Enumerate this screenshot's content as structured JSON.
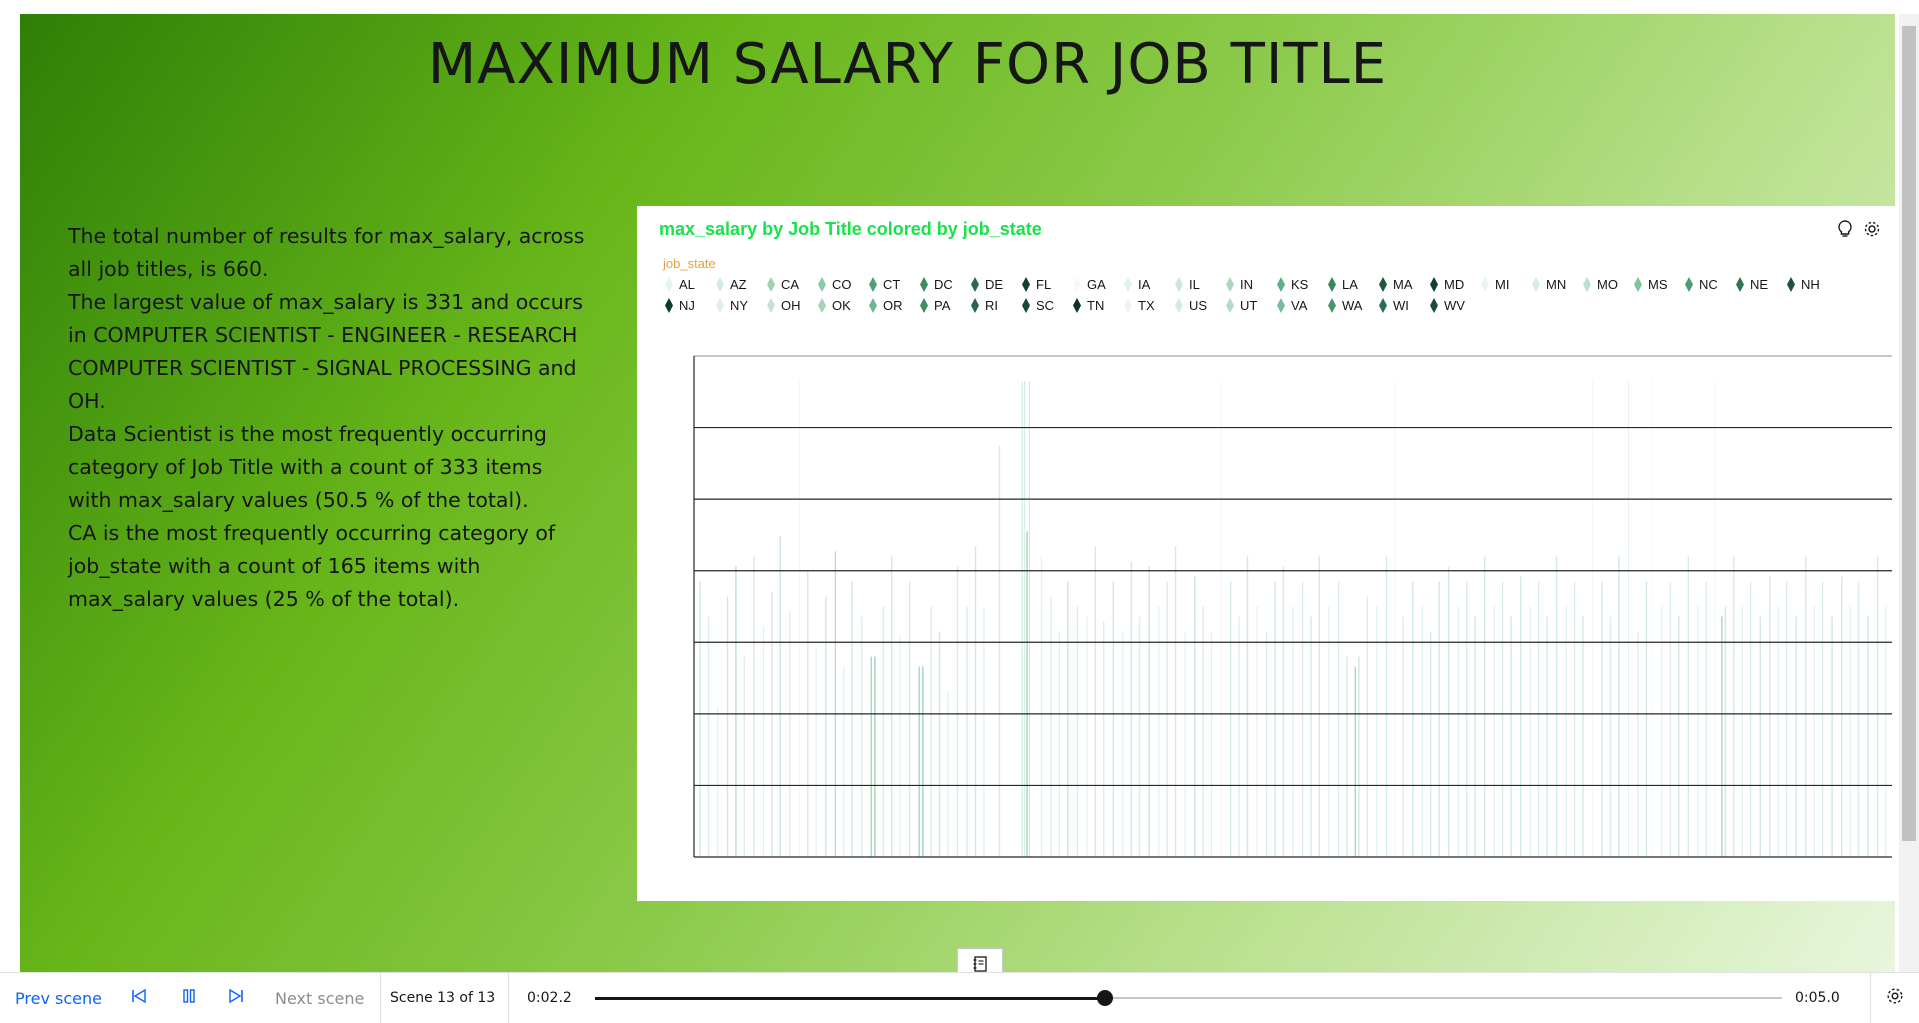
{
  "scene": {
    "title": "MAXIMUM SALARY FOR JOB TITLE",
    "narrative": [
      "The total number of results for max_salary, across all job titles, is 660.",
      "The largest value of max_salary is 331 and occurs in COMPUTER SCIENTIST - ENGINEER - RESEARCH COMPUTER SCIENTIST - SIGNAL PROCESSING and OH.",
      "Data Scientist is the most frequently occurring category of Job Title with a count of 333 items with max_salary values (50.5 % of the total).",
      "CA is the most frequently occurring category of job_state with a count of 165 items with max_salary values (25 % of the total)."
    ]
  },
  "chart_card": {
    "icons": [
      "lightbulb-icon",
      "settings-gear-icon"
    ]
  },
  "chart_data": {
    "type": "bar",
    "title": "max_salary by Job Title colored by job_state",
    "legend_title": "job_state",
    "legend_placement": "top",
    "grid": true,
    "legend": [
      {
        "label": "AL",
        "color": "#e6f4ed"
      },
      {
        "label": "AZ",
        "color": "#d4ecdf"
      },
      {
        "label": "CA",
        "color": "#9fd3b5"
      },
      {
        "label": "CO",
        "color": "#8ccaa7"
      },
      {
        "label": "CT",
        "color": "#4f9e77"
      },
      {
        "label": "DC",
        "color": "#3e8a64"
      },
      {
        "label": "DE",
        "color": "#2c6a4b"
      },
      {
        "label": "FL",
        "color": "#11402b"
      },
      {
        "label": "GA",
        "color": "#f3faf6"
      },
      {
        "label": "IA",
        "color": "#e2f2e9"
      },
      {
        "label": "IL",
        "color": "#cce8d8"
      },
      {
        "label": "IN",
        "color": "#a9d8bd"
      },
      {
        "label": "KS",
        "color": "#5fae86"
      },
      {
        "label": "LA",
        "color": "#3a8860"
      },
      {
        "label": "MA",
        "color": "#1f573b"
      },
      {
        "label": "MD",
        "color": "#123f2a"
      },
      {
        "label": "MI",
        "color": "#e9f5ee"
      },
      {
        "label": "MN",
        "color": "#d7eee1"
      },
      {
        "label": "MO",
        "color": "#b9e0ca"
      },
      {
        "label": "MS",
        "color": "#7cc49c"
      },
      {
        "label": "NC",
        "color": "#4c9c73"
      },
      {
        "label": "NE",
        "color": "#2f7553"
      },
      {
        "label": "NH",
        "color": "#1e5239"
      },
      {
        "label": "NJ",
        "color": "#0f3a26"
      },
      {
        "label": "NY",
        "color": "#dcefe4"
      },
      {
        "label": "OH",
        "color": "#c2e4d1"
      },
      {
        "label": "OK",
        "color": "#a2d4b8"
      },
      {
        "label": "OR",
        "color": "#6cb891"
      },
      {
        "label": "PA",
        "color": "#3f8e66"
      },
      {
        "label": "RI",
        "color": "#28654a"
      },
      {
        "label": "SC",
        "color": "#154a31"
      },
      {
        "label": "TN",
        "color": "#0d3322"
      },
      {
        "label": "TX",
        "color": "#eaf6ef"
      },
      {
        "label": "US",
        "color": "#d1ebdc"
      },
      {
        "label": "UT",
        "color": "#b1dbc3"
      },
      {
        "label": "VA",
        "color": "#73be96"
      },
      {
        "label": "WA",
        "color": "#47966e"
      },
      {
        "label": "WI",
        "color": "#2b6e4e"
      },
      {
        "label": "WV",
        "color": "#1b4d35"
      }
    ],
    "gridlines": 7,
    "spikes": [
      {
        "x": 0.005,
        "h": 0.55,
        "c": "#cfe9dc"
      },
      {
        "x": 0.012,
        "h": 0.48,
        "c": "#dcefe4"
      },
      {
        "x": 0.02,
        "h": 0.3,
        "c": "#e4f3ea"
      },
      {
        "x": 0.028,
        "h": 0.52,
        "c": "#cfe9dc"
      },
      {
        "x": 0.035,
        "h": 0.58,
        "c": "#b9e0ca"
      },
      {
        "x": 0.042,
        "h": 0.4,
        "c": "#dcefe4"
      },
      {
        "x": 0.05,
        "h": 0.6,
        "c": "#d4ecdf"
      },
      {
        "x": 0.058,
        "h": 0.46,
        "c": "#e4f3ea"
      },
      {
        "x": 0.065,
        "h": 0.53,
        "c": "#cfe9dc"
      },
      {
        "x": 0.072,
        "h": 0.64,
        "c": "#cce8d8"
      },
      {
        "x": 0.08,
        "h": 0.49,
        "c": "#dcefe4"
      },
      {
        "x": 0.088,
        "h": 0.95,
        "c": "#f0f8f3"
      },
      {
        "x": 0.095,
        "h": 0.57,
        "c": "#d4ecdf"
      },
      {
        "x": 0.102,
        "h": 0.42,
        "c": "#e4f3ea"
      },
      {
        "x": 0.11,
        "h": 0.52,
        "c": "#cfe9dc"
      },
      {
        "x": 0.118,
        "h": 0.61,
        "c": "#b9e0ca"
      },
      {
        "x": 0.125,
        "h": 0.38,
        "c": "#e4f3ea"
      },
      {
        "x": 0.132,
        "h": 0.55,
        "c": "#cfe9dc"
      },
      {
        "x": 0.14,
        "h": 0.48,
        "c": "#dcefe4"
      },
      {
        "x": 0.148,
        "h": 0.4,
        "c": "#a9d8bd"
      },
      {
        "x": 0.151,
        "h": 0.4,
        "c": "#9fd3b5"
      },
      {
        "x": 0.158,
        "h": 0.5,
        "c": "#dcefe4"
      },
      {
        "x": 0.165,
        "h": 0.6,
        "c": "#cfe9dc"
      },
      {
        "x": 0.172,
        "h": 0.44,
        "c": "#e4f3ea"
      },
      {
        "x": 0.18,
        "h": 0.55,
        "c": "#d4ecdf"
      },
      {
        "x": 0.188,
        "h": 0.38,
        "c": "#a9d8bd"
      },
      {
        "x": 0.191,
        "h": 0.38,
        "c": "#9fd3b5"
      },
      {
        "x": 0.198,
        "h": 0.5,
        "c": "#dcefe4"
      },
      {
        "x": 0.205,
        "h": 0.45,
        "c": "#cfe9dc"
      },
      {
        "x": 0.212,
        "h": 0.33,
        "c": "#e4f3ea"
      },
      {
        "x": 0.22,
        "h": 0.58,
        "c": "#d4ecdf"
      },
      {
        "x": 0.228,
        "h": 0.5,
        "c": "#dcefe4"
      },
      {
        "x": 0.235,
        "h": 0.62,
        "c": "#cfe9dc"
      },
      {
        "x": 0.242,
        "h": 0.5,
        "c": "#e4f3ea"
      },
      {
        "x": 0.255,
        "h": 0.82,
        "c": "#d4ecdf"
      },
      {
        "x": 0.274,
        "h": 0.95,
        "c": "#cfe9dc"
      },
      {
        "x": 0.276,
        "h": 0.95,
        "c": "#d4ecdf"
      },
      {
        "x": 0.278,
        "h": 0.65,
        "c": "#a2d4b8"
      },
      {
        "x": 0.28,
        "h": 0.95,
        "c": "#cfe9dc"
      },
      {
        "x": 0.29,
        "h": 0.6,
        "c": "#e4f3ea"
      },
      {
        "x": 0.298,
        "h": 0.52,
        "c": "#dcefe4"
      },
      {
        "x": 0.305,
        "h": 0.45,
        "c": "#e4f3ea"
      },
      {
        "x": 0.312,
        "h": 0.55,
        "c": "#cfe9dc"
      },
      {
        "x": 0.32,
        "h": 0.5,
        "c": "#dcefe4"
      },
      {
        "x": 0.328,
        "h": 0.48,
        "c": "#e4f3ea"
      },
      {
        "x": 0.335,
        "h": 0.62,
        "c": "#d4ecdf"
      },
      {
        "x": 0.342,
        "h": 0.47,
        "c": "#dcefe4"
      },
      {
        "x": 0.35,
        "h": 0.55,
        "c": "#cfe9dc"
      },
      {
        "x": 0.358,
        "h": 0.45,
        "c": "#e4f3ea"
      },
      {
        "x": 0.365,
        "h": 0.59,
        "c": "#d4ecdf"
      },
      {
        "x": 0.372,
        "h": 0.48,
        "c": "#dcefe4"
      },
      {
        "x": 0.38,
        "h": 0.58,
        "c": "#cfe9dc"
      },
      {
        "x": 0.388,
        "h": 0.5,
        "c": "#e4f3ea"
      },
      {
        "x": 0.395,
        "h": 0.55,
        "c": "#dcefe4"
      },
      {
        "x": 0.402,
        "h": 0.62,
        "c": "#d4ecdf"
      },
      {
        "x": 0.41,
        "h": 0.45,
        "c": "#e4f3ea"
      },
      {
        "x": 0.418,
        "h": 0.56,
        "c": "#cfe9dc"
      },
      {
        "x": 0.425,
        "h": 0.5,
        "c": "#dcefe4"
      },
      {
        "x": 0.432,
        "h": 0.45,
        "c": "#e4f3ea"
      },
      {
        "x": 0.44,
        "h": 0.95,
        "c": "#f0f8f3"
      },
      {
        "x": 0.448,
        "h": 0.55,
        "c": "#d4ecdf"
      },
      {
        "x": 0.455,
        "h": 0.48,
        "c": "#dcefe4"
      },
      {
        "x": 0.462,
        "h": 0.6,
        "c": "#cfe9dc"
      },
      {
        "x": 0.47,
        "h": 0.5,
        "c": "#e4f3ea"
      },
      {
        "x": 0.478,
        "h": 0.45,
        "c": "#dcefe4"
      },
      {
        "x": 0.485,
        "h": 0.55,
        "c": "#cfe9dc"
      },
      {
        "x": 0.492,
        "h": 0.58,
        "c": "#d4ecdf"
      },
      {
        "x": 0.5,
        "h": 0.5,
        "c": "#e4f3ea"
      },
      {
        "x": 0.508,
        "h": 0.55,
        "c": "#dcefe4"
      },
      {
        "x": 0.515,
        "h": 0.48,
        "c": "#cfe9dc"
      },
      {
        "x": 0.522,
        "h": 0.6,
        "c": "#d4ecdf"
      },
      {
        "x": 0.53,
        "h": 0.5,
        "c": "#e4f3ea"
      },
      {
        "x": 0.538,
        "h": 0.55,
        "c": "#dcefe4"
      },
      {
        "x": 0.545,
        "h": 0.4,
        "c": "#cfe9dc"
      },
      {
        "x": 0.552,
        "h": 0.38,
        "c": "#a9d8bd"
      },
      {
        "x": 0.555,
        "h": 0.4,
        "c": "#cfe9dc"
      },
      {
        "x": 0.562,
        "h": 0.52,
        "c": "#dcefe4"
      },
      {
        "x": 0.57,
        "h": 0.5,
        "c": "#e4f3ea"
      },
      {
        "x": 0.578,
        "h": 0.6,
        "c": "#d4ecdf"
      },
      {
        "x": 0.585,
        "h": 0.95,
        "c": "#f0f8f3"
      },
      {
        "x": 0.592,
        "h": 0.48,
        "c": "#dcefe4"
      },
      {
        "x": 0.6,
        "h": 0.55,
        "c": "#cfe9dc"
      },
      {
        "x": 0.608,
        "h": 0.5,
        "c": "#e4f3ea"
      },
      {
        "x": 0.615,
        "h": 0.45,
        "c": "#dcefe4"
      },
      {
        "x": 0.622,
        "h": 0.55,
        "c": "#cfe9dc"
      },
      {
        "x": 0.63,
        "h": 0.58,
        "c": "#d4ecdf"
      },
      {
        "x": 0.638,
        "h": 0.5,
        "c": "#e4f3ea"
      },
      {
        "x": 0.645,
        "h": 0.55,
        "c": "#dcefe4"
      },
      {
        "x": 0.652,
        "h": 0.48,
        "c": "#cfe9dc"
      },
      {
        "x": 0.66,
        "h": 0.6,
        "c": "#d4ecdf"
      },
      {
        "x": 0.668,
        "h": 0.5,
        "c": "#e4f3ea"
      },
      {
        "x": 0.675,
        "h": 0.55,
        "c": "#dcefe4"
      },
      {
        "x": 0.682,
        "h": 0.48,
        "c": "#cfe9dc"
      },
      {
        "x": 0.69,
        "h": 0.56,
        "c": "#d4ecdf"
      },
      {
        "x": 0.698,
        "h": 0.5,
        "c": "#e4f3ea"
      },
      {
        "x": 0.705,
        "h": 0.55,
        "c": "#dcefe4"
      },
      {
        "x": 0.712,
        "h": 0.48,
        "c": "#cfe9dc"
      },
      {
        "x": 0.72,
        "h": 0.6,
        "c": "#d4ecdf"
      },
      {
        "x": 0.728,
        "h": 0.5,
        "c": "#e4f3ea"
      },
      {
        "x": 0.735,
        "h": 0.55,
        "c": "#dcefe4"
      },
      {
        "x": 0.742,
        "h": 0.48,
        "c": "#cfe9dc"
      },
      {
        "x": 0.75,
        "h": 0.95,
        "c": "#f0f8f3"
      },
      {
        "x": 0.758,
        "h": 0.55,
        "c": "#d4ecdf"
      },
      {
        "x": 0.765,
        "h": 0.48,
        "c": "#dcefe4"
      },
      {
        "x": 0.772,
        "h": 0.6,
        "c": "#cfe9dc"
      },
      {
        "x": 0.78,
        "h": 0.95,
        "c": "#e4f3ea"
      },
      {
        "x": 0.788,
        "h": 0.45,
        "c": "#dcefe4"
      },
      {
        "x": 0.795,
        "h": 0.55,
        "c": "#cfe9dc"
      },
      {
        "x": 0.8,
        "h": 0.95,
        "c": "#f0f8f3"
      },
      {
        "x": 0.808,
        "h": 0.5,
        "c": "#e4f3ea"
      },
      {
        "x": 0.815,
        "h": 0.55,
        "c": "#dcefe4"
      },
      {
        "x": 0.822,
        "h": 0.48,
        "c": "#cfe9dc"
      },
      {
        "x": 0.83,
        "h": 0.6,
        "c": "#d4ecdf"
      },
      {
        "x": 0.838,
        "h": 0.5,
        "c": "#e4f3ea"
      },
      {
        "x": 0.845,
        "h": 0.55,
        "c": "#dcefe4"
      },
      {
        "x": 0.852,
        "h": 0.95,
        "c": "#f0f8f3"
      },
      {
        "x": 0.858,
        "h": 0.48,
        "c": "#a9d8bd"
      },
      {
        "x": 0.861,
        "h": 0.5,
        "c": "#cfe9dc"
      },
      {
        "x": 0.868,
        "h": 0.6,
        "c": "#d4ecdf"
      },
      {
        "x": 0.875,
        "h": 0.5,
        "c": "#e4f3ea"
      },
      {
        "x": 0.882,
        "h": 0.55,
        "c": "#dcefe4"
      },
      {
        "x": 0.89,
        "h": 0.48,
        "c": "#cfe9dc"
      },
      {
        "x": 0.898,
        "h": 0.56,
        "c": "#d4ecdf"
      },
      {
        "x": 0.905,
        "h": 0.5,
        "c": "#e4f3ea"
      },
      {
        "x": 0.912,
        "h": 0.55,
        "c": "#dcefe4"
      },
      {
        "x": 0.92,
        "h": 0.48,
        "c": "#cfe9dc"
      },
      {
        "x": 0.928,
        "h": 0.6,
        "c": "#d4ecdf"
      },
      {
        "x": 0.935,
        "h": 0.5,
        "c": "#e4f3ea"
      },
      {
        "x": 0.942,
        "h": 0.55,
        "c": "#dcefe4"
      },
      {
        "x": 0.95,
        "h": 0.48,
        "c": "#cfe9dc"
      },
      {
        "x": 0.958,
        "h": 0.56,
        "c": "#d4ecdf"
      },
      {
        "x": 0.965,
        "h": 0.5,
        "c": "#e4f3ea"
      },
      {
        "x": 0.972,
        "h": 0.55,
        "c": "#dcefe4"
      },
      {
        "x": 0.98,
        "h": 0.48,
        "c": "#cfe9dc"
      },
      {
        "x": 0.988,
        "h": 0.6,
        "c": "#d4ecdf"
      },
      {
        "x": 0.995,
        "h": 0.5,
        "c": "#e4f3ea"
      }
    ]
  },
  "toolbar": {
    "prev_scene": "Prev scene",
    "next_scene": "Next scene",
    "scene_counter": "Scene 13 of 13",
    "elapsed": "0:02.2",
    "total": "0:05.0",
    "progress": 0.43,
    "accent": "#0f62fe"
  }
}
